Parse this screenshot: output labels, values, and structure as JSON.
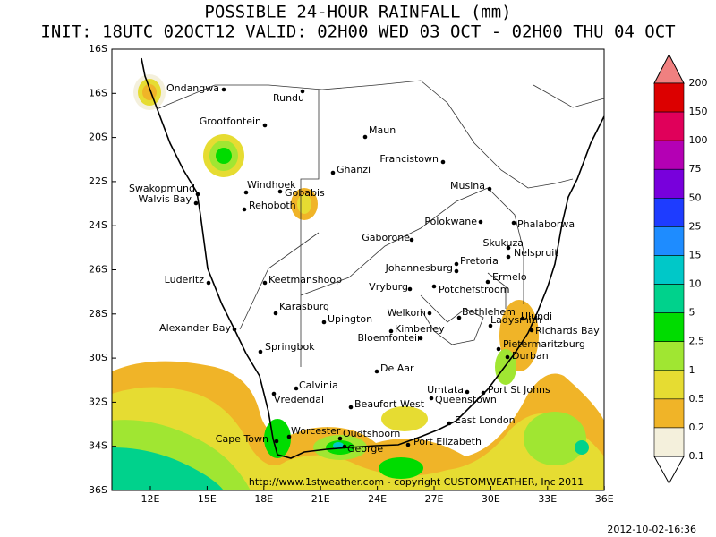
{
  "header": {
    "title": "POSSIBLE 24-HOUR  RAINFALL (mm)",
    "subtitle": "INIT: 18UTC 02OCT12  VALID: 02H00 WED 03 OCT - 02H00 THU 04 OCT"
  },
  "map": {
    "lat_labels": [
      "16S",
      "16S",
      "20S",
      "22S",
      "24S",
      "26S",
      "28S",
      "30S",
      "32S",
      "34S",
      "36S"
    ],
    "lon_labels": [
      "12E",
      "15E",
      "18E",
      "21E",
      "24E",
      "27E",
      "30E",
      "33E",
      "36E"
    ],
    "cities": [
      "Ondangwa",
      "Rundu",
      "Grootfontein",
      "Maun",
      "Francistown",
      "Ghanzi",
      "Swakopmund",
      "Walvis Bay",
      "Windhoek",
      "Gobabis",
      "Rehoboth",
      "Musina",
      "Polokwane",
      "Phalaborwa",
      "Gaborone",
      "Skukuza",
      "Nelspruit",
      "Pretoria",
      "Johannesburg",
      "Ermelo",
      "Luderitz",
      "Keetmanshoop",
      "Vryburg",
      "Potchefstroom",
      "Karasburg",
      "Welkom",
      "Bethlehem",
      "Ulundi",
      "Upington",
      "Ladysmith",
      "Richards Bay",
      "Alexander Bay",
      "Kimberley",
      "Bloemfontein",
      "Pietermaritzburg",
      "Springbok",
      "Durban",
      "De Aar",
      "Calvinia",
      "Umtata",
      "Port St Johns",
      "Queenstown",
      "Vredendal",
      "Beaufort West",
      "East London",
      "Worcester",
      "Oudtshoorn",
      "Cape Town",
      "George",
      "Port Elizabeth"
    ],
    "copyright": "http://www.1stweather.com - copyright CUSTOMWEATHER, Inc 2011"
  },
  "legend": {
    "labels": [
      200,
      150,
      100,
      75,
      50,
      25,
      15,
      10,
      5,
      2.5,
      1,
      0.5,
      0.2,
      0.1
    ]
  },
  "footer": {
    "timestamp": "2012-10-02-16:36"
  }
}
